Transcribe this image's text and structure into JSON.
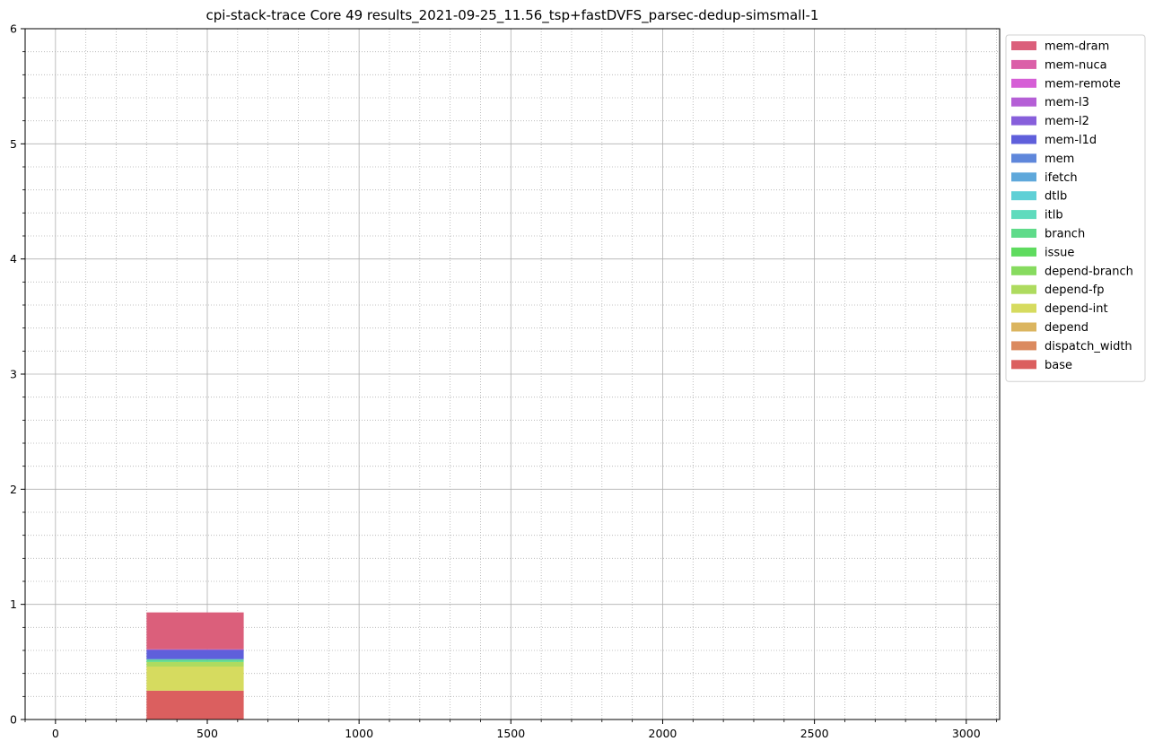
{
  "chart_data": {
    "type": "area",
    "title": "cpi-stack-trace Core 49 results_2021-09-25_11.56_tsp+fastDVFS_parsec-dedup-simsmall-1",
    "xlabel": "",
    "ylabel": "",
    "xlim": [
      -100,
      3110
    ],
    "ylim": [
      0,
      6
    ],
    "x_ticks": [
      0,
      500,
      1000,
      1500,
      2000,
      2500,
      3000
    ],
    "x_tick_labels": [
      "0",
      "500",
      "1000",
      "1500",
      "2000",
      "2500",
      "3000"
    ],
    "y_ticks": [
      0,
      1,
      2,
      3,
      4,
      5,
      6
    ],
    "y_tick_labels": [
      "0",
      "1",
      "2",
      "3",
      "4",
      "5",
      "6"
    ],
    "x_minor_step": 100,
    "y_minor_step": 0.2,
    "grid": true,
    "legend_position": "outside-right-top",
    "x": [
      300,
      620
    ],
    "series": [
      {
        "name": "mem-dram",
        "color": "#db5f7b",
        "values": [
          0.32,
          0.32
        ]
      },
      {
        "name": "mem-nuca",
        "color": "#db5fa8",
        "values": [
          0.0,
          0.0
        ]
      },
      {
        "name": "mem-remote",
        "color": "#d65fd6",
        "values": [
          0.0,
          0.0
        ]
      },
      {
        "name": "mem-l3",
        "color": "#b55fd6",
        "values": [
          0.0,
          0.0
        ]
      },
      {
        "name": "mem-l2",
        "color": "#875fdb",
        "values": [
          0.01,
          0.01
        ]
      },
      {
        "name": "mem-l1d",
        "color": "#5f5fdb",
        "values": [
          0.07,
          0.07
        ]
      },
      {
        "name": "mem",
        "color": "#5f87db",
        "values": [
          0.01,
          0.01
        ]
      },
      {
        "name": "ifetch",
        "color": "#5fa8db",
        "values": [
          0.0,
          0.0
        ]
      },
      {
        "name": "dtlb",
        "color": "#5fd0d6",
        "values": [
          0.0,
          0.0
        ]
      },
      {
        "name": "itlb",
        "color": "#5fdbbd",
        "values": [
          0.0,
          0.0
        ]
      },
      {
        "name": "branch",
        "color": "#5fdb8a",
        "values": [
          0.02,
          0.02
        ]
      },
      {
        "name": "issue",
        "color": "#5fdb5f",
        "values": [
          0.0,
          0.0
        ]
      },
      {
        "name": "depend-branch",
        "color": "#87db5f",
        "values": [
          0.0,
          0.0
        ]
      },
      {
        "name": "depend-fp",
        "color": "#aedb5f",
        "values": [
          0.04,
          0.04
        ]
      },
      {
        "name": "depend-int",
        "color": "#d6db5f",
        "values": [
          0.21,
          0.21
        ]
      },
      {
        "name": "depend",
        "color": "#dbb55f",
        "values": [
          0.0,
          0.0
        ]
      },
      {
        "name": "dispatch_width",
        "color": "#db8a5f",
        "values": [
          0.0,
          0.0
        ]
      },
      {
        "name": "base",
        "color": "#db5f5f",
        "values": [
          0.25,
          0.25
        ]
      }
    ]
  }
}
